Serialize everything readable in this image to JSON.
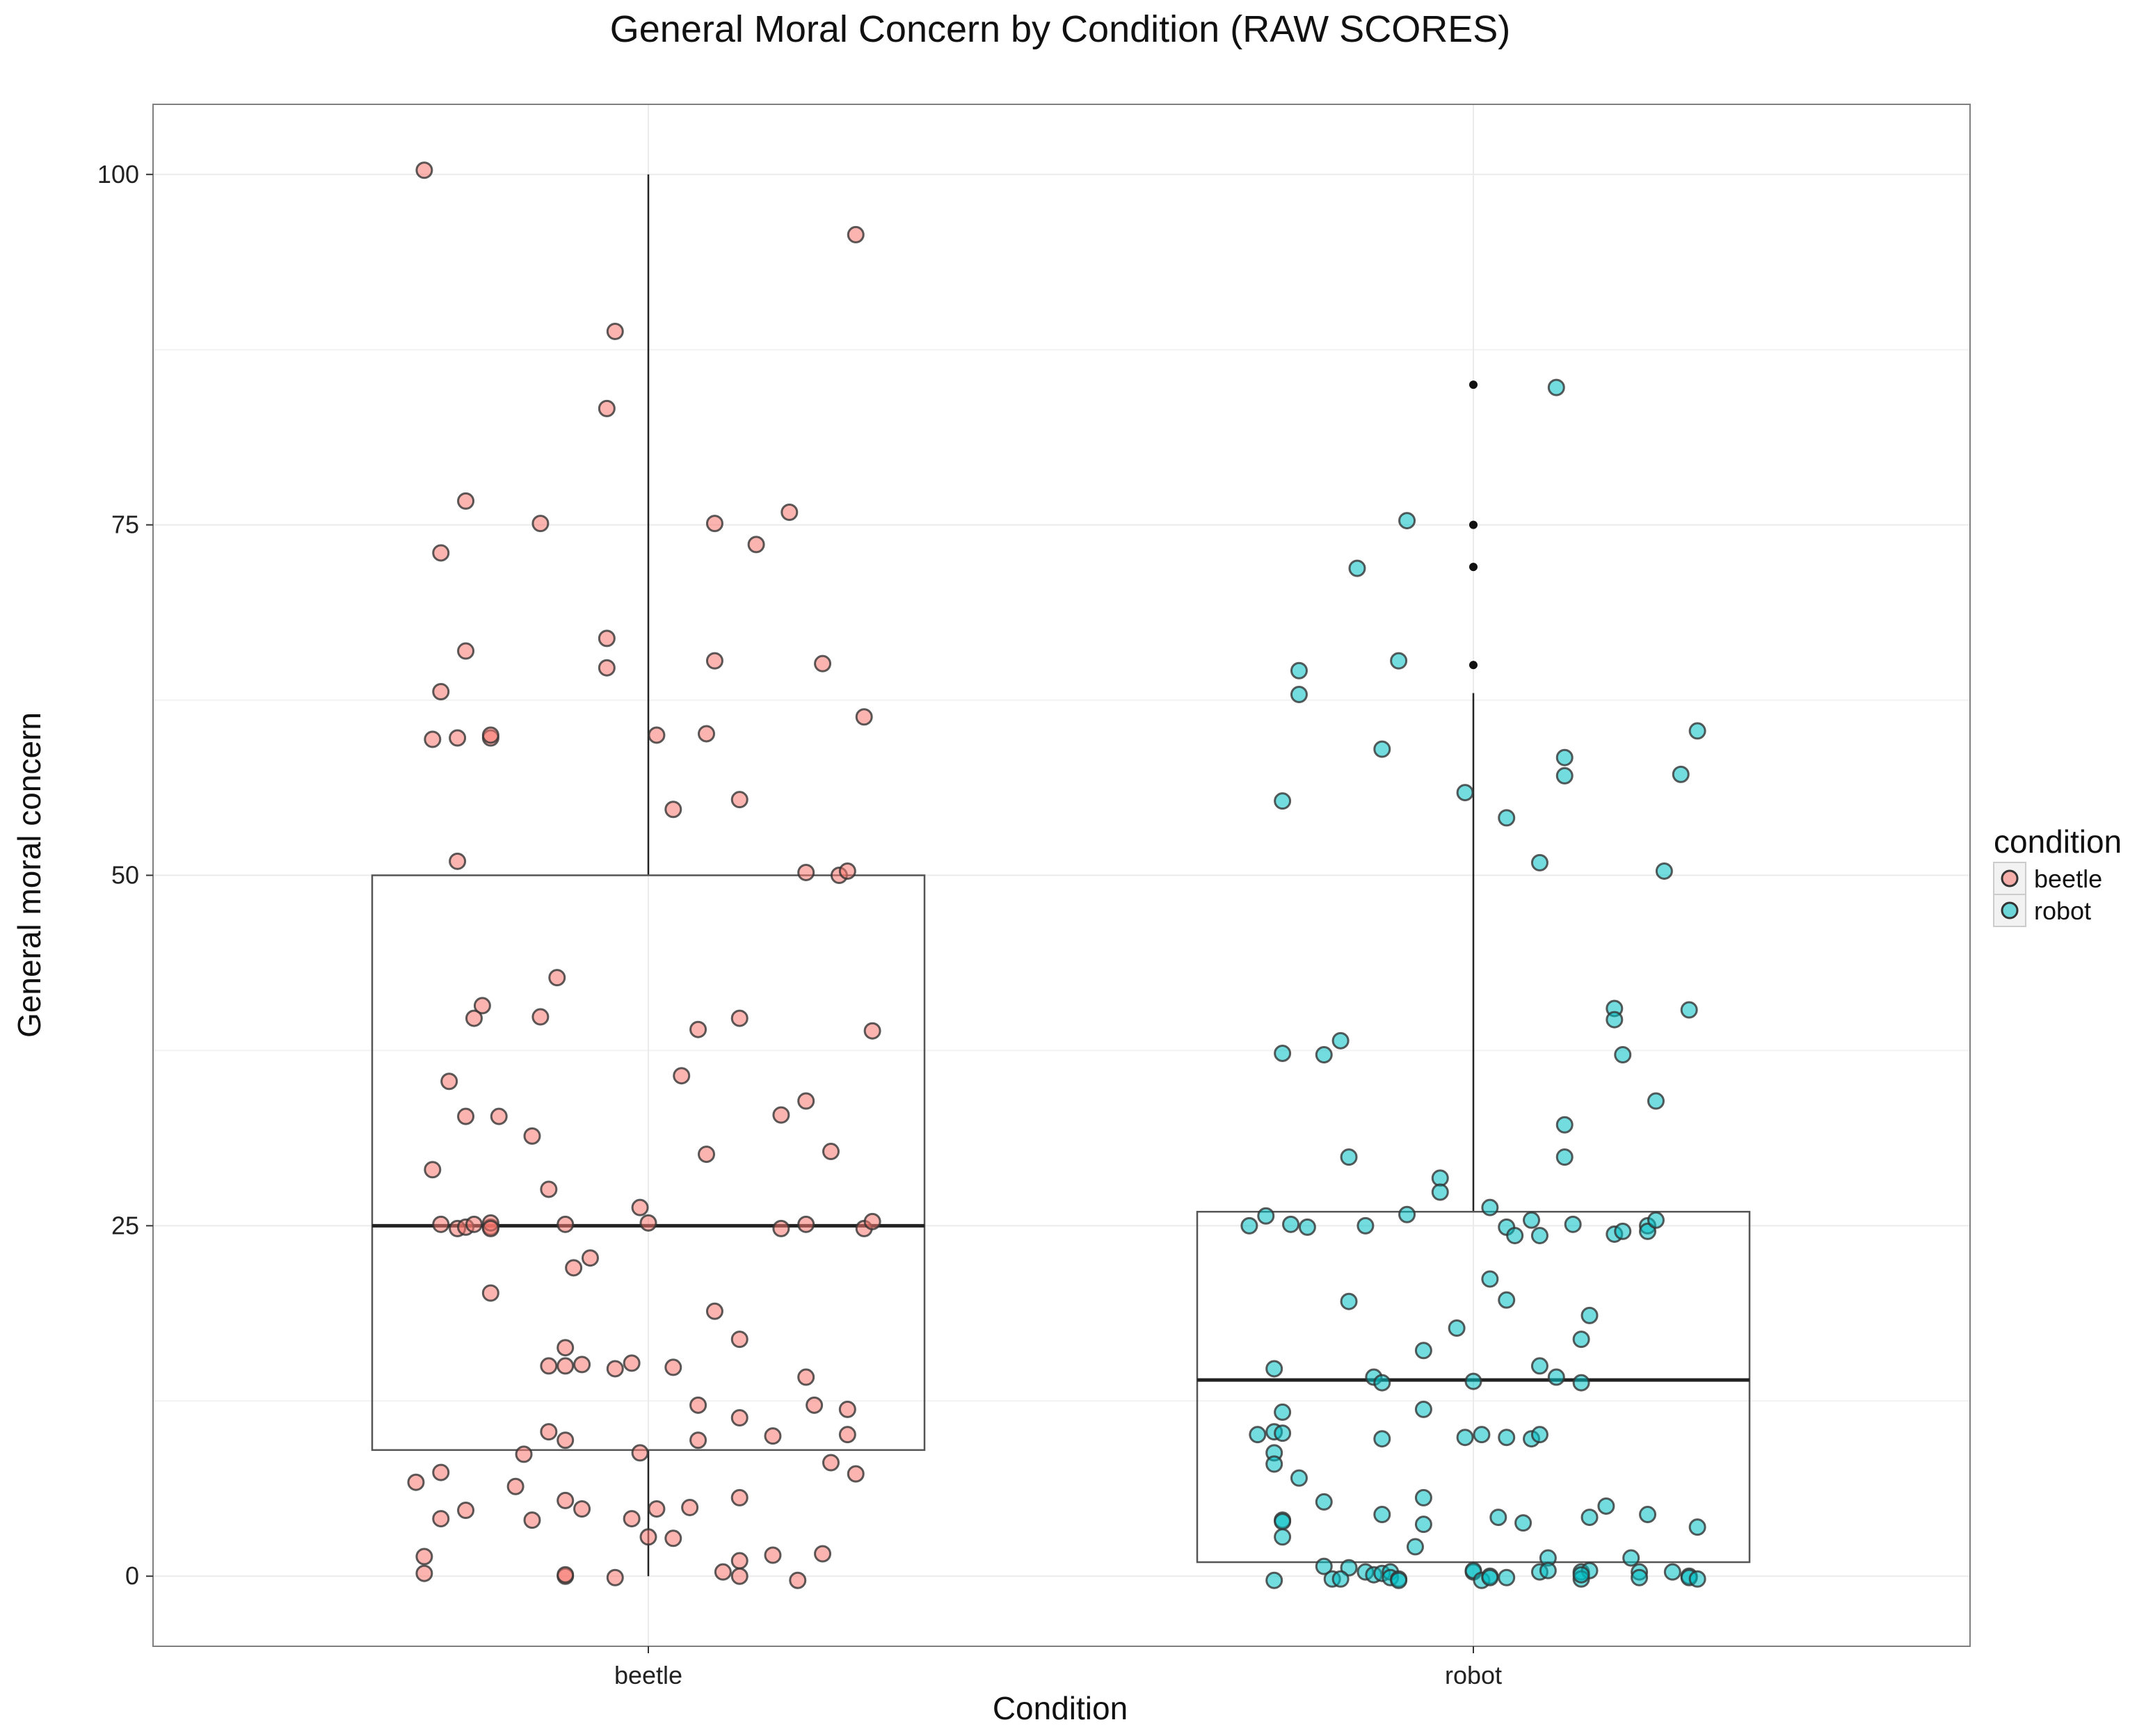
{
  "chart_data": {
    "type": "box-jitter",
    "title": "General Moral Concern by Condition (RAW SCORES)",
    "xlabel": "Condition",
    "ylabel": "General moral concern",
    "categories": [
      "beetle",
      "robot"
    ],
    "ylim": [
      -5,
      105
    ],
    "yticks": [
      0,
      25,
      50,
      75,
      100
    ],
    "grid": true,
    "legend": {
      "title": "condition",
      "placement": "right",
      "entries": [
        {
          "label": "beetle",
          "color": "#F8766D"
        },
        {
          "label": "robot",
          "color": "#00BFC4"
        }
      ]
    },
    "boxes": [
      {
        "category": "beetle",
        "q1": 9,
        "median": 25,
        "q3": 50,
        "whisker_low": 0,
        "whisker_high": 100,
        "outliers": []
      },
      {
        "category": "robot",
        "q1": 1,
        "median": 14,
        "q3": 26,
        "whisker_low": 1,
        "whisker_high": 63,
        "outliers": [
          65,
          72,
          75,
          85
        ]
      }
    ],
    "series": [
      {
        "name": "beetle",
        "color": "#F8766D",
        "points": [
          [
            -0.27,
            100.3
          ],
          [
            0.25,
            95.7
          ],
          [
            -0.04,
            88.8
          ],
          [
            -0.05,
            83.3
          ],
          [
            -0.22,
            76.7
          ],
          [
            -0.13,
            75.1
          ],
          [
            0.08,
            75.1
          ],
          [
            0.17,
            75.9
          ],
          [
            -0.25,
            73.0
          ],
          [
            0.13,
            73.6
          ],
          [
            -0.05,
            66.9
          ],
          [
            -0.05,
            64.8
          ],
          [
            -0.22,
            66.0
          ],
          [
            0.08,
            65.3
          ],
          [
            0.21,
            65.1
          ],
          [
            -0.25,
            63.1
          ],
          [
            -0.26,
            59.7
          ],
          [
            -0.23,
            59.8
          ],
          [
            -0.19,
            59.8
          ],
          [
            -0.19,
            60.0
          ],
          [
            0.01,
            60.0
          ],
          [
            0.07,
            60.1
          ],
          [
            0.26,
            61.3
          ],
          [
            0.03,
            54.7
          ],
          [
            0.11,
            55.4
          ],
          [
            -0.23,
            51.0
          ],
          [
            0.19,
            50.2
          ],
          [
            0.23,
            50.0
          ],
          [
            0.24,
            50.3
          ],
          [
            -0.11,
            42.7
          ],
          [
            -0.2,
            40.7
          ],
          [
            -0.21,
            39.8
          ],
          [
            -0.13,
            39.9
          ],
          [
            0.06,
            39.0
          ],
          [
            0.11,
            39.8
          ],
          [
            0.27,
            38.9
          ],
          [
            -0.24,
            35.3
          ],
          [
            0.04,
            35.7
          ],
          [
            -0.22,
            32.8
          ],
          [
            -0.18,
            32.8
          ],
          [
            -0.14,
            31.4
          ],
          [
            0.16,
            32.9
          ],
          [
            0.19,
            33.9
          ],
          [
            -0.12,
            27.6
          ],
          [
            -0.26,
            29.0
          ],
          [
            0.07,
            30.1
          ],
          [
            0.22,
            30.3
          ],
          [
            -0.25,
            25.1
          ],
          [
            -0.23,
            24.8
          ],
          [
            -0.22,
            24.9
          ],
          [
            -0.21,
            25.1
          ],
          [
            -0.19,
            24.9
          ],
          [
            -0.19,
            25.2
          ],
          [
            -0.19,
            24.8
          ],
          [
            -0.1,
            25.1
          ],
          [
            -0.01,
            26.3
          ],
          [
            0.0,
            25.2
          ],
          [
            0.16,
            24.8
          ],
          [
            0.19,
            25.1
          ],
          [
            0.26,
            24.8
          ],
          [
            0.27,
            25.3
          ],
          [
            -0.09,
            22.0
          ],
          [
            -0.07,
            22.7
          ],
          [
            -0.19,
            20.2
          ],
          [
            0.08,
            18.9
          ],
          [
            0.11,
            16.9
          ],
          [
            -0.1,
            16.3
          ],
          [
            -0.1,
            15.0
          ],
          [
            -0.12,
            15.0
          ],
          [
            -0.08,
            15.1
          ],
          [
            -0.04,
            14.8
          ],
          [
            -0.02,
            15.2
          ],
          [
            0.03,
            14.9
          ],
          [
            0.06,
            12.2
          ],
          [
            0.11,
            11.3
          ],
          [
            0.19,
            14.2
          ],
          [
            0.2,
            12.2
          ],
          [
            0.24,
            11.9
          ],
          [
            -0.12,
            10.3
          ],
          [
            -0.1,
            9.7
          ],
          [
            0.06,
            9.7
          ],
          [
            0.15,
            10.0
          ],
          [
            0.24,
            10.1
          ],
          [
            -0.15,
            8.7
          ],
          [
            -0.01,
            8.8
          ],
          [
            0.22,
            8.1
          ],
          [
            -0.28,
            6.7
          ],
          [
            -0.25,
            7.4
          ],
          [
            -0.16,
            6.4
          ],
          [
            0.25,
            7.3
          ],
          [
            -0.1,
            5.4
          ],
          [
            -0.22,
            4.7
          ],
          [
            -0.08,
            4.8
          ],
          [
            0.01,
            4.8
          ],
          [
            0.05,
            4.9
          ],
          [
            0.11,
            5.6
          ],
          [
            -0.25,
            4.1
          ],
          [
            -0.14,
            4.0
          ],
          [
            -0.02,
            4.1
          ],
          [
            0.0,
            2.8
          ],
          [
            0.03,
            2.7
          ],
          [
            -0.27,
            1.4
          ],
          [
            0.11,
            1.1
          ],
          [
            0.15,
            1.5
          ],
          [
            0.21,
            1.6
          ],
          [
            -0.27,
            0.2
          ],
          [
            -0.1,
            0.0
          ],
          [
            -0.1,
            0.1
          ],
          [
            -0.04,
            -0.1
          ],
          [
            0.09,
            0.3
          ],
          [
            0.11,
            0.0
          ],
          [
            0.18,
            -0.3
          ]
        ]
      },
      {
        "name": "robot",
        "color": "#00BFC4",
        "points": [
          [
            0.1,
            84.8
          ],
          [
            -0.08,
            75.3
          ],
          [
            -0.14,
            71.9
          ],
          [
            -0.09,
            65.3
          ],
          [
            -0.21,
            64.6
          ],
          [
            -0.21,
            62.9
          ],
          [
            -0.11,
            59.0
          ],
          [
            0.27,
            60.3
          ],
          [
            0.11,
            58.4
          ],
          [
            0.11,
            57.1
          ],
          [
            0.25,
            57.2
          ],
          [
            -0.23,
            55.3
          ],
          [
            -0.01,
            55.9
          ],
          [
            0.04,
            54.1
          ],
          [
            0.08,
            50.9
          ],
          [
            0.23,
            50.3
          ],
          [
            0.17,
            40.5
          ],
          [
            0.17,
            39.7
          ],
          [
            0.26,
            40.4
          ],
          [
            -0.23,
            37.3
          ],
          [
            -0.18,
            37.2
          ],
          [
            -0.16,
            38.2
          ],
          [
            0.18,
            37.2
          ],
          [
            0.22,
            33.9
          ],
          [
            0.11,
            32.2
          ],
          [
            -0.15,
            29.9
          ],
          [
            0.11,
            29.9
          ],
          [
            -0.04,
            28.4
          ],
          [
            -0.04,
            27.4
          ],
          [
            0.02,
            26.3
          ],
          [
            -0.27,
            25.0
          ],
          [
            -0.25,
            25.7
          ],
          [
            -0.22,
            25.1
          ],
          [
            -0.2,
            24.9
          ],
          [
            -0.13,
            25.0
          ],
          [
            -0.08,
            25.8
          ],
          [
            0.04,
            24.9
          ],
          [
            0.05,
            24.3
          ],
          [
            0.07,
            25.4
          ],
          [
            0.08,
            24.3
          ],
          [
            0.12,
            25.1
          ],
          [
            0.17,
            24.4
          ],
          [
            0.18,
            24.6
          ],
          [
            0.21,
            25.0
          ],
          [
            0.21,
            24.6
          ],
          [
            0.22,
            25.4
          ],
          [
            0.02,
            21.2
          ],
          [
            0.04,
            19.7
          ],
          [
            -0.15,
            19.6
          ],
          [
            0.14,
            18.6
          ],
          [
            0.13,
            16.9
          ],
          [
            -0.06,
            16.1
          ],
          [
            -0.02,
            17.7
          ],
          [
            -0.24,
            14.8
          ],
          [
            -0.12,
            14.2
          ],
          [
            -0.11,
            13.8
          ],
          [
            0.0,
            13.9
          ],
          [
            0.08,
            15.0
          ],
          [
            0.1,
            14.2
          ],
          [
            0.13,
            13.8
          ],
          [
            -0.23,
            11.7
          ],
          [
            -0.06,
            11.9
          ],
          [
            -0.26,
            10.1
          ],
          [
            -0.24,
            10.3
          ],
          [
            -0.23,
            10.2
          ],
          [
            -0.11,
            9.8
          ],
          [
            -0.01,
            9.9
          ],
          [
            0.01,
            10.1
          ],
          [
            0.04,
            9.9
          ],
          [
            0.07,
            9.8
          ],
          [
            0.08,
            10.1
          ],
          [
            -0.24,
            8.8
          ],
          [
            -0.24,
            8.0
          ],
          [
            -0.21,
            7.0
          ],
          [
            -0.18,
            5.3
          ],
          [
            -0.06,
            5.6
          ],
          [
            0.16,
            5.0
          ],
          [
            -0.11,
            4.4
          ],
          [
            -0.06,
            3.7
          ],
          [
            -0.23,
            4.0
          ],
          [
            -0.23,
            3.9
          ],
          [
            -0.23,
            2.8
          ],
          [
            0.03,
            4.2
          ],
          [
            0.06,
            3.8
          ],
          [
            0.14,
            4.2
          ],
          [
            0.21,
            4.4
          ],
          [
            0.27,
            3.5
          ],
          [
            -0.07,
            2.1
          ],
          [
            0.09,
            1.3
          ],
          [
            0.19,
            1.3
          ],
          [
            -0.18,
            0.7
          ],
          [
            -0.15,
            0.6
          ],
          [
            -0.13,
            0.3
          ],
          [
            -0.12,
            0.1
          ],
          [
            -0.11,
            0.2
          ],
          [
            -0.1,
            0.3
          ],
          [
            0.0,
            0.3
          ],
          [
            0.0,
            0.4
          ],
          [
            0.08,
            0.3
          ],
          [
            0.09,
            0.4
          ],
          [
            0.13,
            0.3
          ],
          [
            0.14,
            0.4
          ],
          [
            0.2,
            0.3
          ],
          [
            0.24,
            0.3
          ],
          [
            -0.24,
            -0.3
          ],
          [
            -0.17,
            -0.2
          ],
          [
            -0.16,
            -0.2
          ],
          [
            -0.1,
            -0.1
          ],
          [
            -0.09,
            -0.2
          ],
          [
            -0.09,
            -0.3
          ],
          [
            0.01,
            -0.3
          ],
          [
            0.02,
            0.0
          ],
          [
            0.02,
            -0.1
          ],
          [
            0.04,
            -0.1
          ],
          [
            0.13,
            -0.2
          ],
          [
            0.13,
            0.1
          ],
          [
            0.2,
            -0.1
          ],
          [
            0.26,
            0.0
          ],
          [
            0.26,
            -0.1
          ],
          [
            0.27,
            -0.2
          ]
        ]
      }
    ]
  }
}
